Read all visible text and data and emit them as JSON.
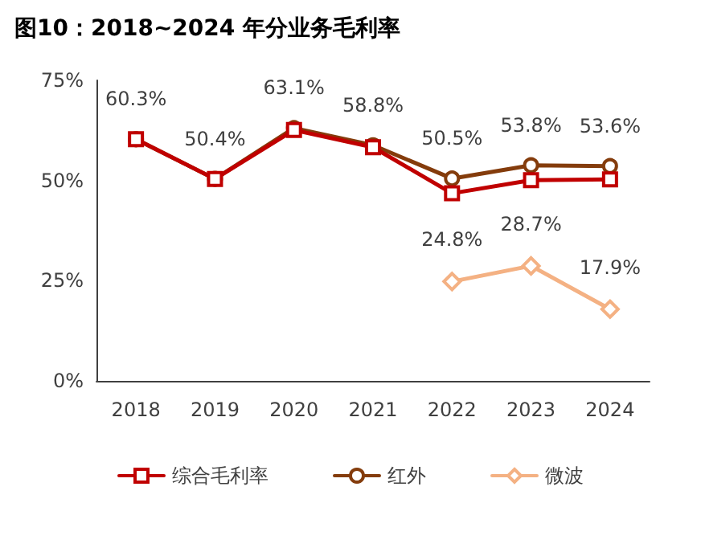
{
  "chart_data": {
    "type": "line",
    "title": "图10：2018~2024 年分业务毛利率",
    "categories": [
      "2018",
      "2019",
      "2020",
      "2021",
      "2022",
      "2023",
      "2024"
    ],
    "series": [
      {
        "name": "综合毛利率",
        "color": "#c00000",
        "marker": "square",
        "values": [
          60.3,
          50.4,
          62.6,
          58.3,
          46.8,
          50.1,
          50.3
        ]
      },
      {
        "name": "红外",
        "color": "#843c0c",
        "marker": "circle",
        "values": [
          60.3,
          50.4,
          63.1,
          58.8,
          50.5,
          53.8,
          53.6
        ],
        "value_labels": [
          "60.3%",
          "50.4%",
          "63.1%",
          "58.8%",
          "50.5%",
          "53.8%",
          "53.6%"
        ]
      },
      {
        "name": "微波",
        "color": "#f4b183",
        "marker": "diamond",
        "values": [
          null,
          null,
          null,
          null,
          24.8,
          28.7,
          17.9
        ],
        "value_labels": [
          null,
          null,
          null,
          null,
          "24.8%",
          "28.7%",
          "17.9%"
        ]
      }
    ],
    "ylim": [
      0,
      75
    ],
    "yticks": [
      {
        "value": 0,
        "label": "0%"
      },
      {
        "value": 25,
        "label": "25%"
      },
      {
        "value": 50,
        "label": "50%"
      },
      {
        "value": 75,
        "label": "75%"
      }
    ],
    "grid": false,
    "legend": "bottom",
    "line_style": "solid"
  }
}
